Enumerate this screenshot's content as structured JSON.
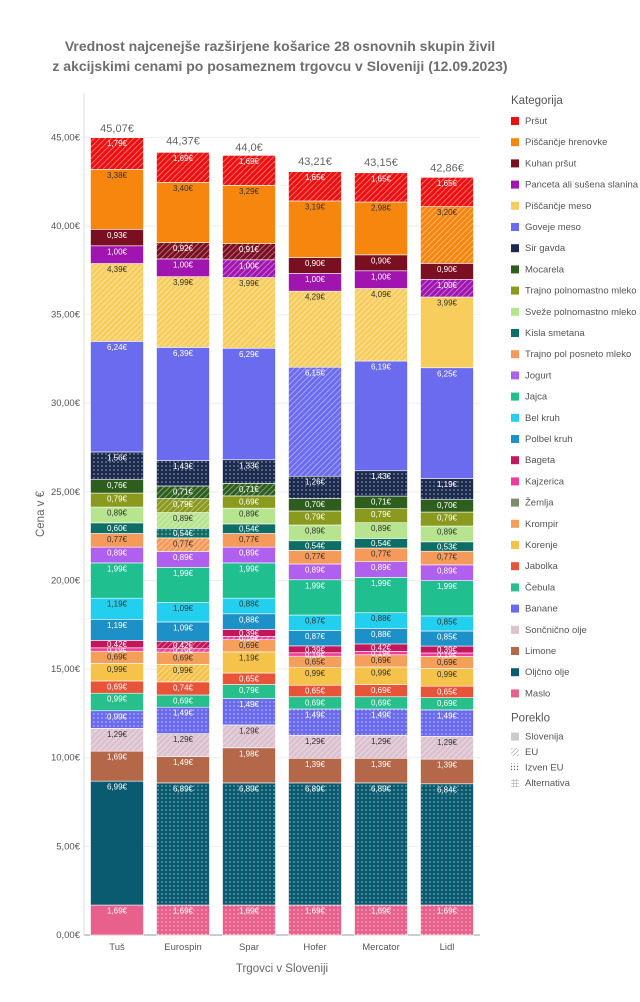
{
  "chart_data": {
    "type": "bar",
    "stacked": true,
    "title_lines": [
      "Vrednost najcenejše razširjene košarice 28 osnovnih skupin živil",
      "z akcijskimi cenami po posameznem trgovcu v Sloveniji (12.09.2023)"
    ],
    "xlabel": "Trgovci v Sloveniji",
    "ylabel": "Cena v €",
    "ylim": [
      0,
      47.5
    ],
    "yticks": [
      0,
      5,
      10,
      15,
      20,
      25,
      30,
      35,
      40,
      45
    ],
    "ytick_labels": [
      "0,00€",
      "5,00€",
      "10,00€",
      "15,00€",
      "20,00€",
      "25,00€",
      "30,00€",
      "35,00€",
      "40,00€",
      "45,00€"
    ],
    "categories": [
      "Tuš",
      "Eurospin",
      "Spar",
      "Hofer",
      "Mercator",
      "Lidl"
    ],
    "totals": [
      45.07,
      44.37,
      44.0,
      43.21,
      43.15,
      42.86
    ],
    "total_labels": [
      "45,07€",
      "44,37€",
      "44,0€",
      "43,21€",
      "43,15€",
      "42,86€"
    ],
    "legend_title": "Kategorija",
    "legend_position": "right",
    "series": [
      {
        "name": "Maslo",
        "color": "#e8618c",
        "values": [
          1.69,
          1.69,
          1.69,
          1.69,
          1.69,
          1.69
        ]
      },
      {
        "name": "Oljčno olje",
        "color": "#0a5a70",
        "values": [
          6.99,
          6.89,
          6.89,
          6.89,
          6.89,
          6.84
        ]
      },
      {
        "name": "Limone",
        "color": "#b5674a",
        "values": [
          1.69,
          1.49,
          1.98,
          1.39,
          1.39,
          1.39
        ]
      },
      {
        "name": "Sončnično olje",
        "color": "#dcc1cf",
        "values": [
          1.29,
          1.29,
          1.29,
          1.29,
          1.29,
          1.29
        ]
      },
      {
        "name": "Banane",
        "color": "#6a6aee",
        "values": [
          0.99,
          1.49,
          1.49,
          1.49,
          1.49,
          1.49
        ]
      },
      {
        "name": "Čebula",
        "color": "#27bf8c",
        "values": [
          0.99,
          0.69,
          0.79,
          0.69,
          0.69,
          0.69
        ]
      },
      {
        "name": "Jabolka",
        "color": "#e8543a",
        "values": [
          0.69,
          0.74,
          0.65,
          0.65,
          0.69,
          0.65
        ]
      },
      {
        "name": "Korenje",
        "color": "#f5c24a",
        "values": [
          0.99,
          0.99,
          1.19,
          0.99,
          0.99,
          0.99
        ]
      },
      {
        "name": "Krompir",
        "color": "#f5a05a",
        "values": [
          0.69,
          0.69,
          0.69,
          0.65,
          0.69,
          0.69
        ]
      },
      {
        "name": "Žemlja",
        "color": "#7d8c6a",
        "values": [
          0.0,
          0.0,
          0.0,
          0.0,
          0.0,
          0.0
        ]
      },
      {
        "name": "Kajzerica",
        "color": "#ee3d9d",
        "values": [
          0.19,
          0.19,
          0.19,
          0.19,
          0.19,
          0.19
        ]
      },
      {
        "name": "Bageta",
        "color": "#c2185b",
        "values": [
          0.42,
          0.42,
          0.39,
          0.39,
          0.42,
          0.39
        ]
      },
      {
        "name": "Polbel kruh",
        "color": "#1e90c8",
        "values": [
          1.19,
          1.09,
          0.88,
          0.87,
          0.88,
          0.85
        ]
      },
      {
        "name": "Bel kruh",
        "color": "#22cfee",
        "values": [
          1.19,
          1.09,
          0.88,
          0.87,
          0.88,
          0.85
        ]
      },
      {
        "name": "Jajca",
        "color": "#1fbf8f",
        "values": [
          1.99,
          1.99,
          1.99,
          1.99,
          1.99,
          1.99
        ]
      },
      {
        "name": "Jogurt",
        "color": "#b060ee",
        "values": [
          0.89,
          0.89,
          0.89,
          0.89,
          0.89,
          0.89
        ]
      },
      {
        "name": "Trajno pol posneto mleko",
        "color": "#f59a5a",
        "values": [
          0.77,
          0.77,
          0.77,
          0.77,
          0.77,
          0.77
        ]
      },
      {
        "name": "Kisla smetana",
        "color": "#0e6e66",
        "values": [
          0.6,
          0.54,
          0.54,
          0.54,
          0.54,
          0.53
        ]
      },
      {
        "name": "Sveže polnomastno mleko",
        "color": "#b7e48e",
        "values": [
          0.89,
          0.89,
          0.89,
          0.89,
          0.89,
          0.89
        ]
      },
      {
        "name": "Trajno polnomastno mleko",
        "color": "#8a9a1e",
        "values": [
          0.79,
          0.79,
          0.69,
          0.79,
          0.79,
          0.79
        ]
      },
      {
        "name": "Mocarela",
        "color": "#2e5e1e",
        "values": [
          0.76,
          0.71,
          0.71,
          0.7,
          0.71,
          0.7
        ]
      },
      {
        "name": "Sir gavda",
        "color": "#1b2a4e",
        "values": [
          1.56,
          1.43,
          1.33,
          1.26,
          1.43,
          1.19
        ]
      },
      {
        "name": "Goveje meso",
        "color": "#6b6bf0",
        "values": [
          6.24,
          6.39,
          6.29,
          6.15,
          6.19,
          6.25
        ]
      },
      {
        "name": "Piščančje meso",
        "color": "#f7cd5e",
        "values": [
          4.39,
          3.99,
          3.99,
          4.29,
          4.09,
          3.99
        ]
      },
      {
        "name": "Panceta ali sušena slanina",
        "color": "#a015b0",
        "values": [
          1.0,
          1.0,
          1.0,
          1.0,
          1.0,
          1.0
        ]
      },
      {
        "name": "Kuhan pršut",
        "color": "#7a0f22",
        "values": [
          0.93,
          0.92,
          0.91,
          0.9,
          0.9,
          0.9
        ]
      },
      {
        "name": "Piščančje hrenovke",
        "color": "#f7860e",
        "values": [
          3.38,
          3.4,
          3.29,
          3.19,
          2.98,
          3.2
        ]
      },
      {
        "name": "Pršut",
        "color": "#ee1010",
        "values": [
          1.79,
          1.69,
          1.69,
          1.65,
          1.65,
          1.65
        ]
      }
    ],
    "value_labels": [
      [
        "1,69€",
        "1,69€",
        "1,69€",
        "1,69€",
        "1,69€",
        "1,69€"
      ],
      [
        "6,99€",
        "6,89€",
        "6,89€",
        "6,89€",
        "6,89€",
        "6,84€"
      ],
      [
        "1,69€",
        "1,49€",
        "1,98€",
        "1,39€",
        "1,39€",
        "1,39€"
      ],
      [
        "1,29€",
        "1,29€",
        "1,29€",
        "1,29€",
        "1,29€",
        "1,29€"
      ],
      [
        "0,99€",
        "1,49€",
        "1,49€",
        "1,49€",
        "1,49€",
        "1,49€"
      ],
      [
        "0,99€",
        "0,69€",
        "0,79€",
        "0,69€",
        "0,69€",
        "0,69€"
      ],
      [
        "0,69€",
        "0,74€",
        "0,65€",
        "0,65€",
        "0,69€",
        "0,65€"
      ],
      [
        "0,99€",
        "0,99€",
        "1,19€",
        "0,99€",
        "0,99€",
        "0,99€"
      ],
      [
        "0,69€",
        "0,69€",
        "0,69€",
        "0,65€",
        "0,69€",
        "0,69€"
      ],
      [
        "",
        "",
        "",
        "",
        "",
        ""
      ],
      [
        "0,19€",
        "0,19€",
        "0,19€",
        "0,19€",
        "0,19€",
        "0,19€"
      ],
      [
        "0,42€",
        "0,42€",
        "0,39€",
        "0,39€",
        "0,42€",
        "0,39€"
      ],
      [
        "1,19€",
        "1,09€",
        "0,88€",
        "0,87€",
        "0,88€",
        "0,85€"
      ],
      [
        "1,19€",
        "1,09€",
        "0,88€",
        "0,87€",
        "0,88€",
        "0,85€"
      ],
      [
        "1,99€",
        "1,99€",
        "1,99€",
        "1,99€",
        "1,99€",
        "1,99€"
      ],
      [
        "0,89€",
        "0,89€",
        "0,89€",
        "0,89€",
        "0,89€",
        "0,89€"
      ],
      [
        "0,77€",
        "0,77€",
        "0,77€",
        "0,77€",
        "0,77€",
        "0,77€"
      ],
      [
        "0,60€",
        "0,54€",
        "0,54€",
        "0,54€",
        "0,54€",
        "0,53€"
      ],
      [
        "0,89€",
        "0,89€",
        "0,89€",
        "0,89€",
        "0,89€",
        "0,89€"
      ],
      [
        "0,79€",
        "0,79€",
        "0,69€",
        "0,79€",
        "0,79€",
        "0,79€"
      ],
      [
        "0,76€",
        "0,71€",
        "0,71€",
        "0,70€",
        "0,71€",
        "0,70€"
      ],
      [
        "1,56€",
        "1,43€",
        "1,33€",
        "1,26€",
        "1,43€",
        "1,19€"
      ],
      [
        "6,24€",
        "6,39€",
        "6,29€",
        "6,15€",
        "6,19€",
        "6,25€"
      ],
      [
        "4,39€",
        "3,99€",
        "3,99€",
        "4,29€",
        "4,09€",
        "3,99€"
      ],
      [
        "1,00€",
        "1,00€",
        "1,00€",
        "1,00€",
        "1,00€",
        "1,00€"
      ],
      [
        "0,93€",
        "0,92€",
        "0,91€",
        "0,90€",
        "0,90€",
        "0,90€"
      ],
      [
        "3,38€",
        "3,40€",
        "3,29€",
        "3,19€",
        "2,98€",
        "3,20€"
      ],
      [
        "1,79€",
        "1,69€",
        "1,69€",
        "1,65€",
        "1,65€",
        "1,65€"
      ]
    ],
    "origin": [
      [
        "slovenija",
        "izven",
        "izven",
        "izven",
        "izven",
        "izven"
      ],
      [
        "slovenija",
        "izven",
        "izven",
        "izven",
        "izven",
        "izven"
      ],
      [
        "slovenija",
        "slovenija",
        "slovenija",
        "slovenija",
        "slovenija",
        "slovenija"
      ],
      [
        "eu",
        "eu",
        "eu",
        "eu",
        "eu",
        "eu"
      ],
      [
        "izven",
        "izven",
        "izven",
        "izven",
        "izven",
        "izven"
      ],
      [
        "slovenija",
        "slovenija",
        "slovenija",
        "slovenija",
        "slovenija",
        "slovenija"
      ],
      [
        "slovenija",
        "slovenija",
        "slovenija",
        "slovenija",
        "slovenija",
        "slovenija"
      ],
      [
        "slovenija",
        "eu",
        "slovenija",
        "slovenija",
        "slovenija",
        "slovenija"
      ],
      [
        "slovenija",
        "slovenija",
        "slovenija",
        "slovenija",
        "slovenija",
        "slovenija"
      ],
      [
        "slovenija",
        "slovenija",
        "slovenija",
        "slovenija",
        "slovenija",
        "slovenija"
      ],
      [
        "slovenija",
        "eu",
        "eu",
        "slovenija",
        "slovenija",
        "slovenija"
      ],
      [
        "slovenija",
        "eu",
        "slovenija",
        "slovenija",
        "slovenija",
        "slovenija"
      ],
      [
        "slovenija",
        "slovenija",
        "slovenija",
        "slovenija",
        "slovenija",
        "slovenija"
      ],
      [
        "slovenija",
        "slovenija",
        "slovenija",
        "slovenija",
        "slovenija",
        "slovenija"
      ],
      [
        "slovenija",
        "slovenija",
        "slovenija",
        "slovenija",
        "slovenija",
        "slovenija"
      ],
      [
        "slovenija",
        "slovenija",
        "slovenija",
        "slovenija",
        "slovenija",
        "slovenija"
      ],
      [
        "slovenija",
        "eu",
        "slovenija",
        "slovenija",
        "slovenija",
        "slovenija"
      ],
      [
        "slovenija",
        "izven",
        "slovenija",
        "slovenija",
        "slovenija",
        "slovenija"
      ],
      [
        "slovenija",
        "eu",
        "slovenija",
        "slovenija",
        "slovenija",
        "slovenija"
      ],
      [
        "slovenija",
        "eu",
        "slovenija",
        "slovenija",
        "slovenija",
        "slovenija"
      ],
      [
        "slovenija",
        "eu",
        "eu",
        "slovenija",
        "slovenija",
        "slovenija"
      ],
      [
        "izven",
        "izven",
        "izven",
        "izven",
        "izven",
        "izven"
      ],
      [
        "slovenija",
        "slovenija",
        "slovenija",
        "eu",
        "slovenija",
        "slovenija"
      ],
      [
        "eu",
        "eu",
        "eu",
        "eu",
        "eu",
        "slovenija"
      ],
      [
        "slovenija",
        "slovenija",
        "eu",
        "slovenija",
        "slovenija",
        "eu"
      ],
      [
        "slovenija",
        "eu",
        "eu",
        "slovenija",
        "slovenija",
        "slovenija"
      ],
      [
        "slovenija",
        "slovenija",
        "slovenija",
        "slovenija",
        "slovenija",
        "eu"
      ],
      [
        "eu",
        "eu",
        "eu",
        "eu",
        "eu",
        "eu"
      ]
    ],
    "origin_legend_title": "Poreklo",
    "origin_legend": [
      {
        "key": "slovenija",
        "label": "Slovenija"
      },
      {
        "key": "eu",
        "label": "EU"
      },
      {
        "key": "izven",
        "label": "Izven EU"
      },
      {
        "key": "alternativa",
        "label": "Alternativa"
      }
    ]
  }
}
